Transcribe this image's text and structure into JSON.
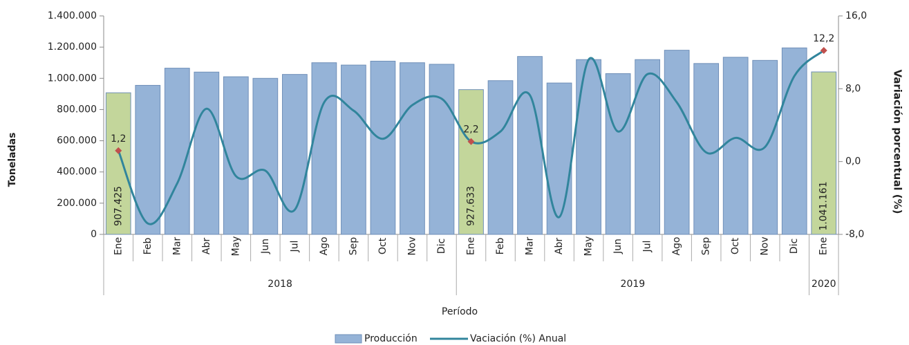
{
  "chart_data": {
    "type": "bar-line",
    "categories": [
      "Ene",
      "Feb",
      "Mar",
      "Abr",
      "May",
      "Jun",
      "Jul",
      "Ago",
      "Sep",
      "Oct",
      "Nov",
      "Dic",
      "Ene",
      "Feb",
      "Mar",
      "Abr",
      "May",
      "Jun",
      "Jul",
      "Ago",
      "Sep",
      "Oct",
      "Nov",
      "Dic",
      "Ene"
    ],
    "year_labels": [
      "2018",
      null,
      null,
      null,
      null,
      null,
      null,
      null,
      null,
      null,
      null,
      null,
      "2019",
      null,
      null,
      null,
      null,
      null,
      null,
      null,
      null,
      null,
      null,
      null,
      "2020"
    ],
    "x_label": "Período",
    "y_label": "Toneladas",
    "y2_label": "Variación porcentual (%)",
    "ylim": [
      0,
      1400000
    ],
    "yticks": [
      0,
      {
        "value": 200000,
        "label": "200.000"
      },
      {
        "value": 400000,
        "label": "400.000"
      },
      {
        "value": 600000,
        "label": "600.000"
      },
      {
        "value": 800000,
        "label": "800.000"
      },
      {
        "value": 1000000,
        "label": "1.000.000"
      },
      {
        "value": 1200000,
        "label": "1.200.000"
      },
      {
        "value": 1400000,
        "label": "1.400.000"
      }
    ],
    "y2lim": [
      -8,
      16
    ],
    "y2ticks": [
      {
        "value": -8,
        "label": "-8,0"
      },
      {
        "value": 0,
        "label": "0,0"
      },
      {
        "value": 8,
        "label": "8,0"
      },
      {
        "value": 16,
        "label": "16,0"
      }
    ],
    "series": [
      {
        "name": "Producción",
        "type": "bar",
        "color": "#95b3d7",
        "colors": [
          "#c3d69b",
          "#95b3d7",
          "#95b3d7",
          "#95b3d7",
          "#95b3d7",
          "#95b3d7",
          "#95b3d7",
          "#95b3d7",
          "#95b3d7",
          "#95b3d7",
          "#95b3d7",
          "#95b3d7",
          "#c3d69b",
          "#95b3d7",
          "#95b3d7",
          "#95b3d7",
          "#95b3d7",
          "#95b3d7",
          "#95b3d7",
          "#95b3d7",
          "#95b3d7",
          "#95b3d7",
          "#95b3d7",
          "#95b3d7",
          "#c3d69b"
        ],
        "values": [
          907425,
          955000,
          1065000,
          1040000,
          1010000,
          1000000,
          1025000,
          1100000,
          1085000,
          1110000,
          1100000,
          1090000,
          927633,
          985000,
          1140000,
          970000,
          1120000,
          1030000,
          1120000,
          1180000,
          1095000,
          1135000,
          1115000,
          1195000,
          1041161
        ],
        "value_labels": [
          "907.425",
          null,
          null,
          null,
          null,
          null,
          null,
          null,
          null,
          null,
          null,
          null,
          "927.633",
          null,
          null,
          null,
          null,
          null,
          null,
          null,
          null,
          null,
          null,
          null,
          "1.041.161"
        ]
      },
      {
        "name": "Vaciación (%) Anual",
        "type": "line",
        "axis": "y2",
        "color": "#31859c",
        "marker_color": "#c0504d",
        "values": [
          1.2,
          -6.8,
          -2.4,
          5.8,
          -1.6,
          -1.0,
          -5.3,
          6.5,
          5.6,
          2.5,
          6.2,
          6.9,
          2.2,
          3.3,
          7.3,
          -6.1,
          11.2,
          3.3,
          9.6,
          6.5,
          1.0,
          2.6,
          1.6,
          9.4,
          12.2
        ],
        "value_labels": [
          "1,2",
          null,
          null,
          null,
          null,
          null,
          null,
          null,
          null,
          null,
          null,
          null,
          "2,2",
          null,
          null,
          null,
          null,
          null,
          null,
          null,
          null,
          null,
          null,
          null,
          "12,2"
        ]
      }
    ]
  }
}
